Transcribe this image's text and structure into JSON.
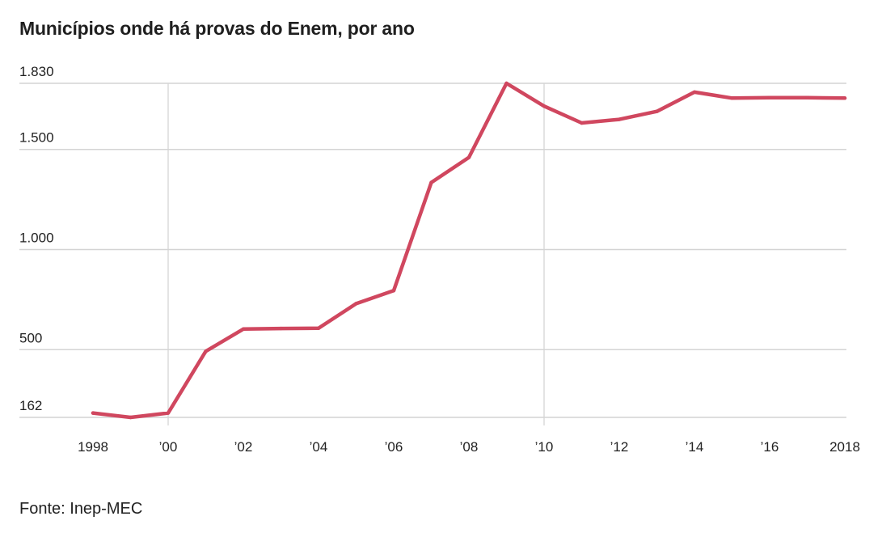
{
  "chart_data": {
    "type": "line",
    "title": "Municípios onde há provas do Enem, por ano",
    "source": "Fonte: Inep-MEC",
    "xlabel": "",
    "ylabel": "",
    "xlim": [
      1998,
      2018
    ],
    "ylim": [
      162,
      1830
    ],
    "grid": "horizontal",
    "y_ticks": [
      {
        "value": 1830,
        "label": "1.830"
      },
      {
        "value": 1500,
        "label": "1.500"
      },
      {
        "value": 1000,
        "label": "1.000"
      },
      {
        "value": 500,
        "label": "500"
      },
      {
        "value": 162,
        "label": "162"
      }
    ],
    "x_ticks": [
      {
        "value": 1998,
        "label": "1998"
      },
      {
        "value": 2000,
        "label": "’00"
      },
      {
        "value": 2002,
        "label": "’02"
      },
      {
        "value": 2004,
        "label": "’04"
      },
      {
        "value": 2006,
        "label": "’06"
      },
      {
        "value": 2008,
        "label": "’08"
      },
      {
        "value": 2010,
        "label": "’10"
      },
      {
        "value": 2012,
        "label": "’12"
      },
      {
        "value": 2014,
        "label": "’14"
      },
      {
        "value": 2016,
        "label": "’16"
      },
      {
        "value": 2018,
        "label": "2018"
      }
    ],
    "vertical_gridlines": [
      2000,
      2010
    ],
    "series": [
      {
        "color": "#d0475f",
        "x": [
          1998,
          1999,
          2000,
          2001,
          2002,
          2003,
          2004,
          2005,
          2006,
          2007,
          2008,
          2009,
          2010,
          2011,
          2012,
          2013,
          2014,
          2015,
          2016,
          2017,
          2018
        ],
        "values": [
          184,
          162,
          184,
          492,
          603,
          606,
          607,
          730,
          795,
          1335,
          1460,
          1830,
          1716,
          1632,
          1650,
          1690,
          1786,
          1756,
          1758,
          1758,
          1756
        ]
      }
    ]
  }
}
